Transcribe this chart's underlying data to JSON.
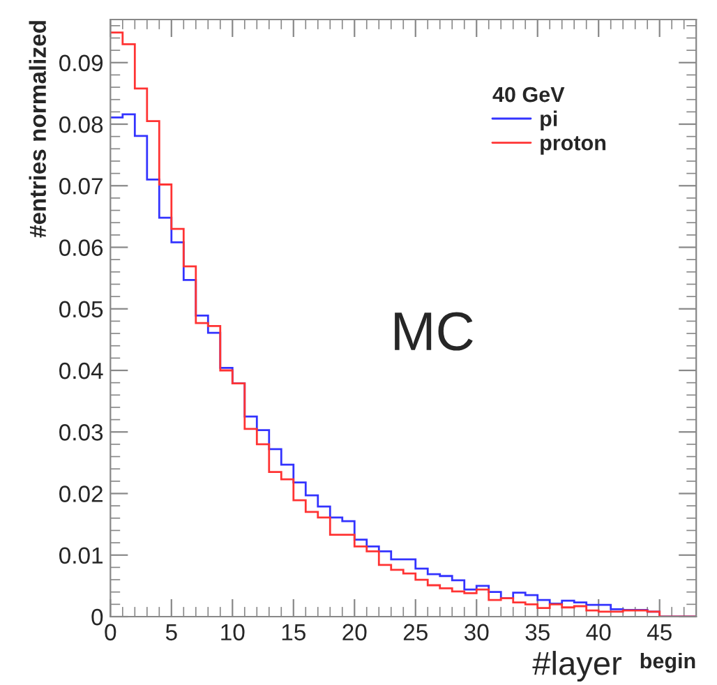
{
  "chart_data": {
    "type": "histogram",
    "xlabel": "begin",
    "ylabel": "#entries normalized",
    "legend_title": "40 GeV",
    "annotations": [
      "MC",
      "#layer"
    ],
    "bins": [
      0,
      1,
      2,
      3,
      4,
      5,
      6,
      7,
      8,
      9,
      10,
      11,
      12,
      13,
      14,
      15,
      16,
      17,
      18,
      19,
      20,
      21,
      22,
      23,
      24,
      25,
      26,
      27,
      28,
      29,
      30,
      31,
      32,
      33,
      34,
      35,
      36,
      37,
      38,
      39,
      40,
      41,
      42,
      43,
      44,
      45,
      46,
      47,
      48
    ],
    "series": [
      {
        "name": "pi",
        "color": "#3333ff",
        "values": [
          0.0811,
          0.0816,
          0.0781,
          0.071,
          0.0648,
          0.0608,
          0.0547,
          0.0489,
          0.0461,
          0.0404,
          0.0379,
          0.0325,
          0.0303,
          0.0272,
          0.0247,
          0.0218,
          0.0197,
          0.0179,
          0.0161,
          0.0155,
          0.0125,
          0.0114,
          0.0106,
          0.0093,
          0.0093,
          0.0078,
          0.0069,
          0.0066,
          0.0059,
          0.0044,
          0.005,
          0.004,
          0.003,
          0.0039,
          0.0035,
          0.0027,
          0.0021,
          0.0026,
          0.0023,
          0.0019,
          0.0019,
          0.0012,
          0.0011,
          0.0011,
          0.0008,
          0,
          0,
          0
        ]
      },
      {
        "name": "proton",
        "color": "#ff3333",
        "values": [
          0.0949,
          0.093,
          0.0858,
          0.0805,
          0.0702,
          0.063,
          0.0569,
          0.0477,
          0.0472,
          0.04,
          0.0379,
          0.0305,
          0.028,
          0.0235,
          0.0223,
          0.0189,
          0.017,
          0.0161,
          0.0133,
          0.0133,
          0.0114,
          0.0106,
          0.0084,
          0.0076,
          0.007,
          0.006,
          0.0051,
          0.0046,
          0.0041,
          0.0038,
          0.0044,
          0.0027,
          0.003,
          0.0023,
          0.002,
          0.0014,
          0.002,
          0.0015,
          0.0017,
          0.001,
          0.0008,
          0.0008,
          0.001,
          0.001,
          0.0008,
          0,
          0,
          0
        ]
      }
    ],
    "xlim": [
      0,
      48
    ],
    "ylim": [
      0,
      0.097
    ],
    "xticks": [
      0,
      5,
      10,
      15,
      20,
      25,
      30,
      35,
      40,
      45
    ],
    "yticks": [
      0,
      0.01,
      0.02,
      0.03,
      0.04,
      0.05,
      0.06,
      0.07,
      0.08,
      0.09
    ],
    "legend": "top right",
    "grid": false
  }
}
